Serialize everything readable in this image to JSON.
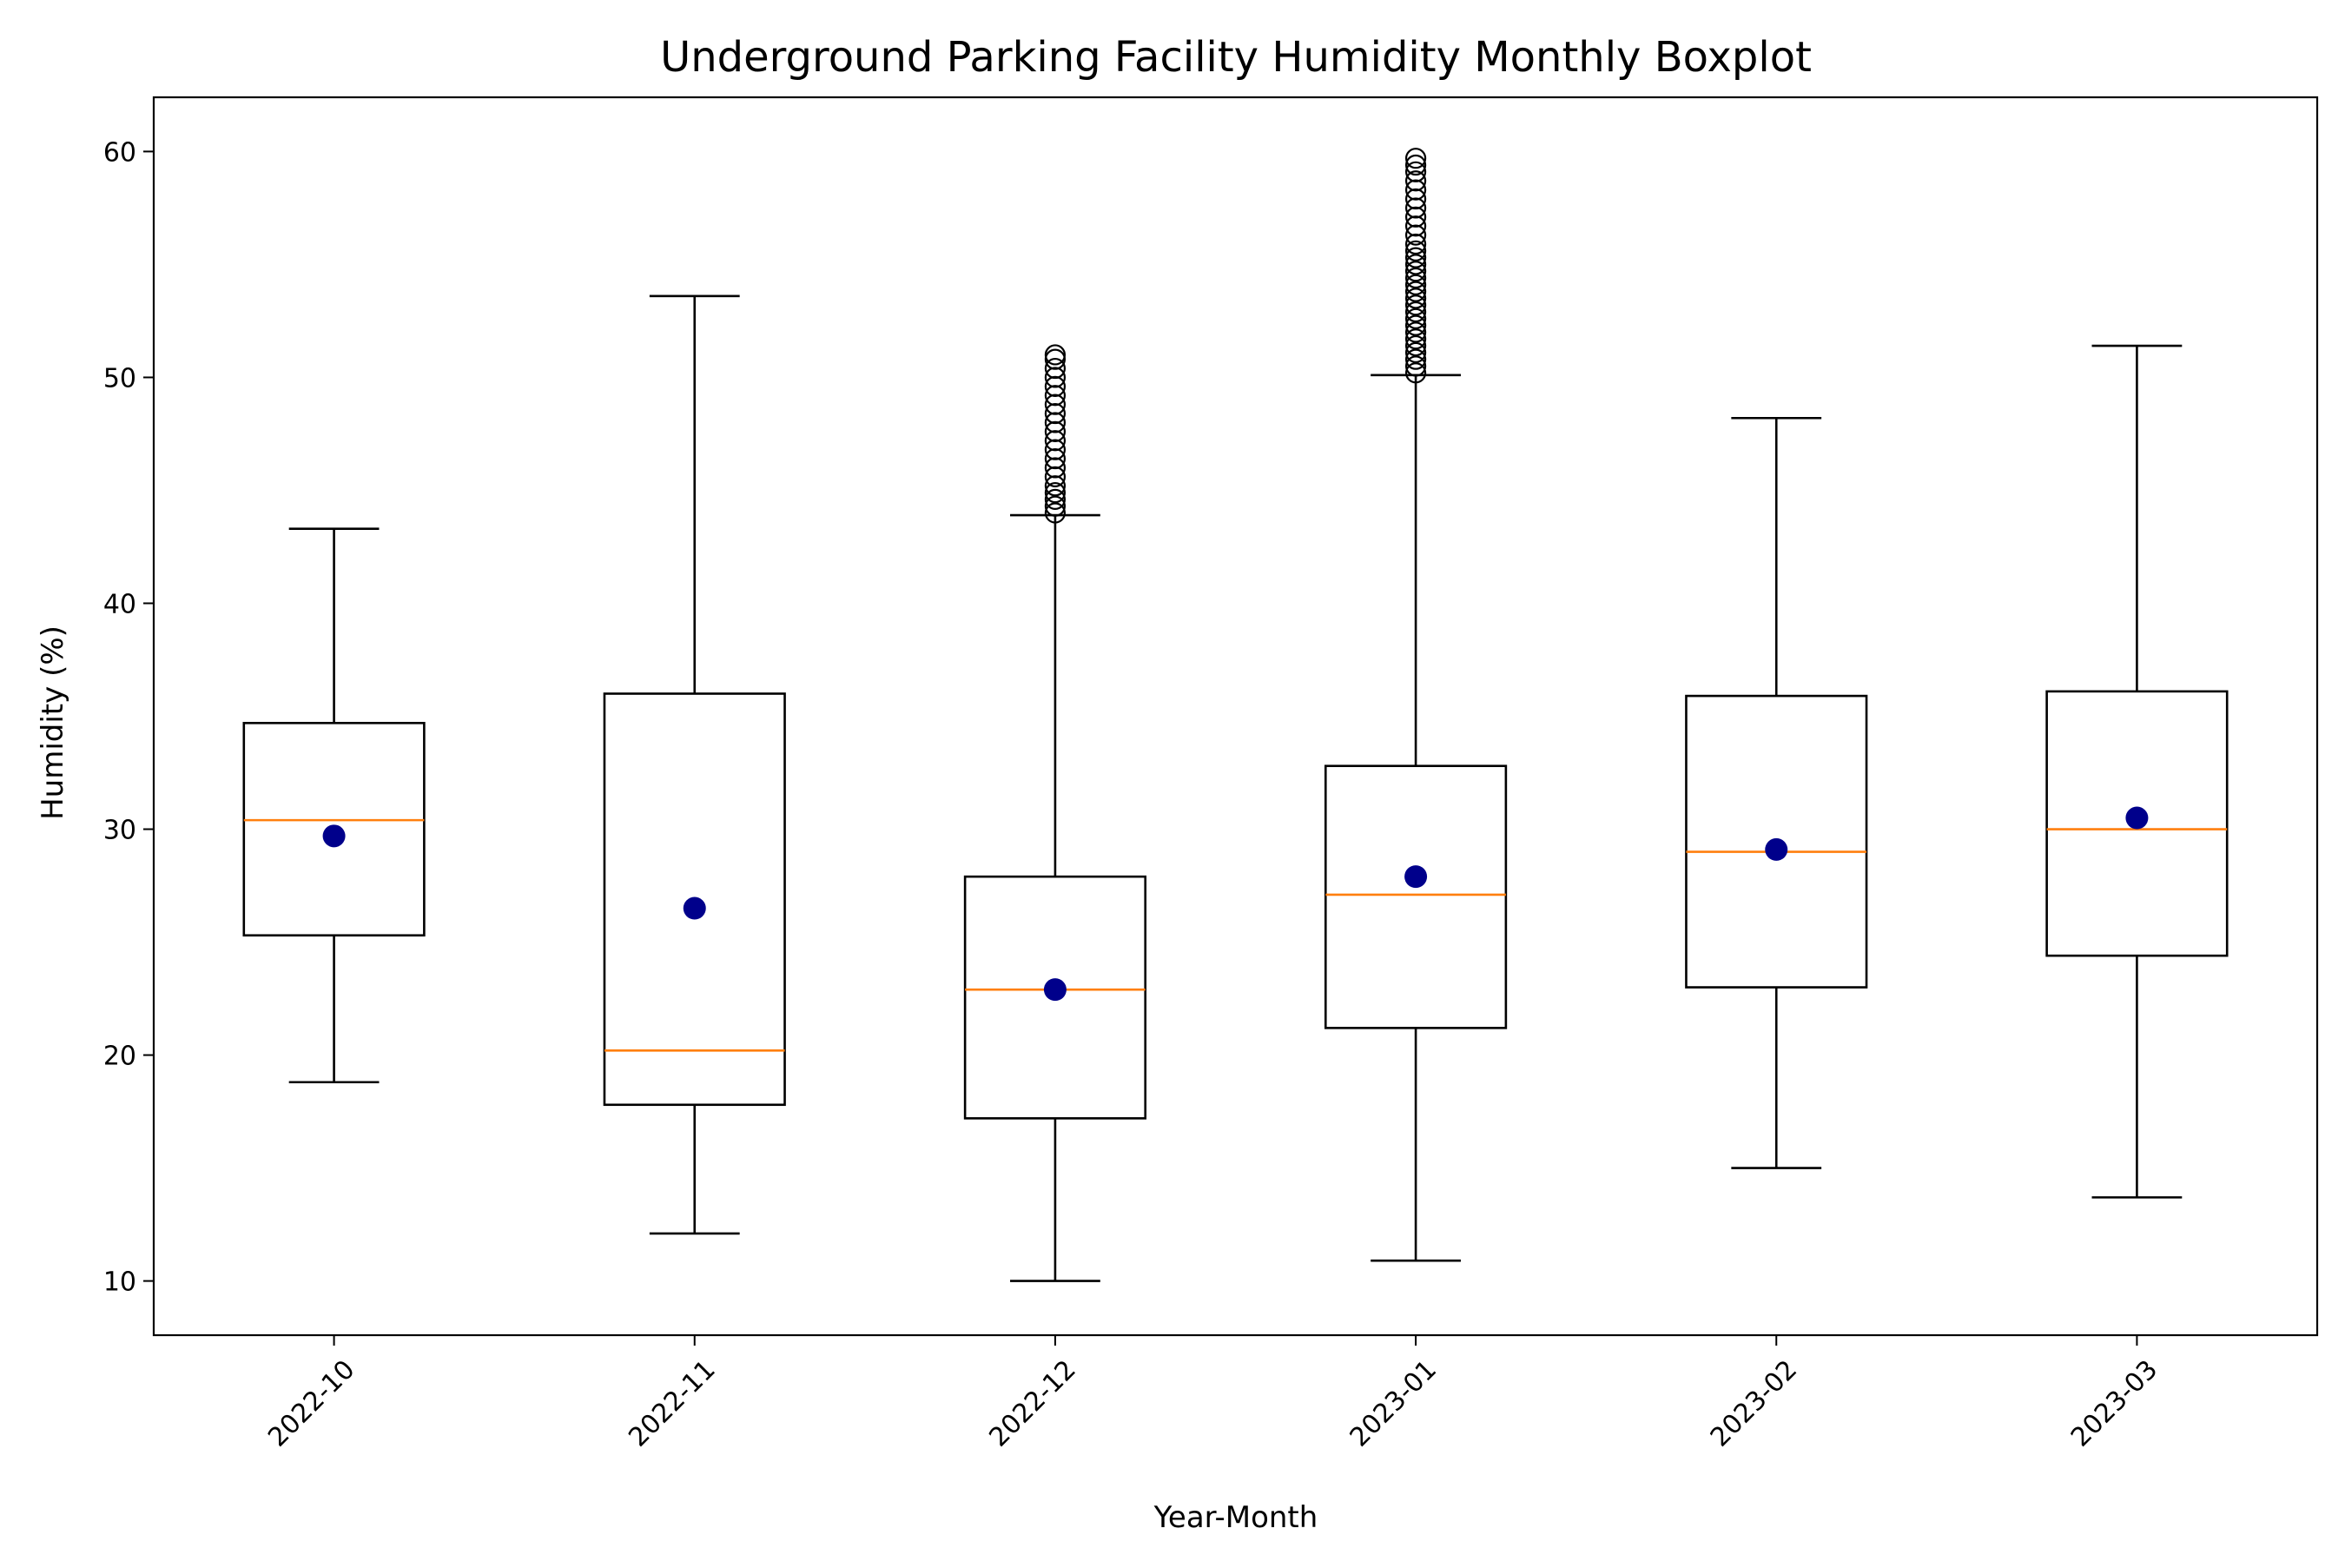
{
  "chart_data": {
    "type": "boxplot",
    "title": "Underground Parking Facility Humidity Monthly Boxplot",
    "xlabel": "Year-Month",
    "ylabel": "Humidity (%)",
    "ylim": [
      7.6,
      62.4
    ],
    "yticks": [
      10,
      20,
      30,
      40,
      50,
      60
    ],
    "ytick_labels": [
      "10",
      "20",
      "30",
      "40",
      "50",
      "60"
    ],
    "xtick_rotation_deg": 45,
    "grid": false,
    "colors": {
      "box": "#000000",
      "median": "#ff7f0e",
      "mean": "#00008b",
      "outlier": "#000000"
    },
    "categories": [
      "2022-10",
      "2022-11",
      "2022-12",
      "2023-01",
      "2023-02",
      "2023-03"
    ],
    "boxes": [
      {
        "label": "2022-10",
        "whisker_low": 18.8,
        "q1": 25.3,
        "median": 30.4,
        "q3": 34.7,
        "whisker_high": 43.3,
        "mean": 29.7,
        "outliers": []
      },
      {
        "label": "2022-11",
        "whisker_low": 12.1,
        "q1": 17.8,
        "median": 20.2,
        "q3": 36.0,
        "whisker_high": 53.6,
        "mean": 26.5,
        "outliers": []
      },
      {
        "label": "2022-12",
        "whisker_low": 10.0,
        "q1": 17.2,
        "median": 22.9,
        "q3": 27.9,
        "whisker_high": 43.9,
        "mean": 22.9,
        "outliers": [
          44.0,
          44.3,
          44.6,
          44.9,
          45.2,
          45.6,
          46.0,
          46.4,
          46.8,
          47.2,
          47.6,
          48.0,
          48.4,
          48.8,
          49.2,
          49.6,
          50.0,
          50.4,
          50.8,
          51.0
        ]
      },
      {
        "label": "2023-01",
        "whisker_low": 10.9,
        "q1": 21.2,
        "median": 27.1,
        "q3": 32.8,
        "whisker_high": 50.1,
        "mean": 27.9,
        "outliers": [
          50.2,
          50.5,
          50.8,
          51.1,
          51.4,
          51.7,
          52.0,
          52.3,
          52.6,
          52.9,
          53.2,
          53.5,
          53.8,
          54.1,
          54.4,
          54.7,
          55.0,
          55.3,
          55.6,
          55.9,
          56.3,
          56.7,
          57.1,
          57.5,
          57.9,
          58.3,
          58.7,
          59.1,
          59.4,
          59.7
        ]
      },
      {
        "label": "2023-02",
        "whisker_low": 15.0,
        "q1": 23.0,
        "median": 29.0,
        "q3": 35.9,
        "whisker_high": 48.2,
        "mean": 29.1,
        "outliers": []
      },
      {
        "label": "2023-03",
        "whisker_low": 13.7,
        "q1": 24.4,
        "median": 30.0,
        "q3": 36.1,
        "whisker_high": 51.4,
        "mean": 30.5,
        "outliers": []
      }
    ]
  }
}
